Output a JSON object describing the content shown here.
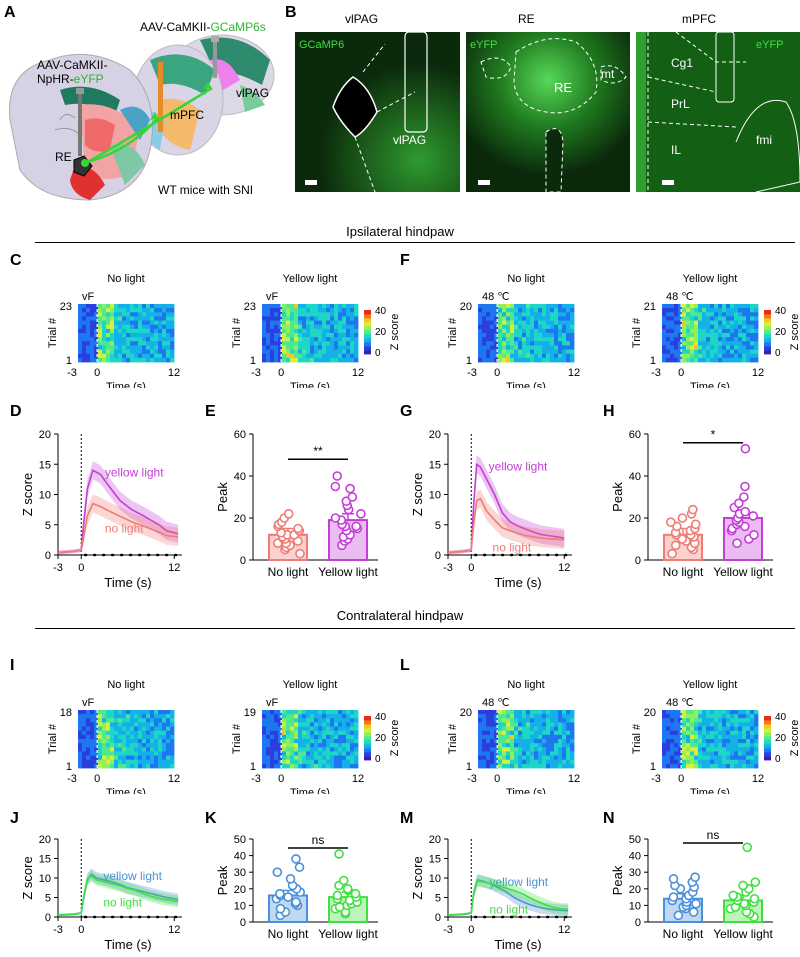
{
  "panel_letters": {
    "A": "A",
    "B": "B",
    "C": "C",
    "D": "D",
    "E": "E",
    "F": "F",
    "G": "G",
    "H": "H",
    "I": "I",
    "J": "J",
    "K": "K",
    "L": "L",
    "M": "M",
    "N": "N"
  },
  "panelA": {
    "virus_left_line1": "AAV-CaMKII-",
    "virus_left_line2": "NpHR-",
    "virus_left_fp": "eYFP",
    "virus_right": "AAV-CaMKII-",
    "virus_right_fp": "GCaMP6s",
    "region_re": "RE",
    "region_mpfc": "mPFC",
    "region_vlpag": "vlPAG",
    "caption": "WT mice with SNI"
  },
  "panelB": {
    "titles": [
      "vlPAG",
      "RE",
      "mPFC"
    ],
    "img1": {
      "marker": "GCaMP6",
      "region": "vlPAG"
    },
    "img2": {
      "marker": "eYFP",
      "region": "RE",
      "mt": "mt"
    },
    "img3": {
      "marker": "eYFP",
      "cg1": "Cg1",
      "prl": "PrL",
      "il": "IL",
      "fmi": "fmi"
    }
  },
  "sections": {
    "ipsi": "Ipsilateral hindpaw",
    "contra": "Contralateral hindpaw"
  },
  "heatmap_text": {
    "no_light": "No light",
    "yellow_light": "Yellow light",
    "trial": "Trial #",
    "time": "Time (s)",
    "zscore": "Z score",
    "vf": "vF",
    "heat": "48 ℃",
    "x_ticks": [
      "-3",
      "0",
      "12"
    ],
    "cbar_ticks": [
      "40",
      "20",
      "0"
    ],
    "C": {
      "trials_no": "23",
      "trials_yellow": "23"
    },
    "F": {
      "trials_no": "20",
      "trials_yellow": "21"
    },
    "I": {
      "trials_no": "18",
      "trials_yellow": "19"
    },
    "L": {
      "trials_no": "20",
      "trials_yellow": "20"
    },
    "trial_min": "1"
  },
  "chart_data": [
    {
      "panel": "D",
      "type": "line",
      "xlabel": "Time (s)",
      "ylabel": "Z score",
      "x_ticks": [
        "-3",
        "0",
        "12"
      ],
      "y_ticks": [
        "0",
        "5",
        "10",
        "15",
        "20"
      ],
      "xlim": [
        -3,
        13
      ],
      "ylim": [
        0,
        20
      ],
      "series": [
        {
          "name": "yellow light",
          "color": "#c33ed6",
          "x": [
            -3,
            -1,
            0,
            0.3,
            0.8,
            1.5,
            2.5,
            3.5,
            5,
            6.5,
            8,
            10,
            11,
            12.5
          ],
          "values": [
            0.4,
            0.6,
            0.8,
            5,
            11,
            14,
            13.3,
            11.5,
            9,
            7.5,
            6.5,
            5,
            4,
            3.5
          ]
        },
        {
          "name": "no light",
          "color": "#f07b74",
          "x": [
            -3,
            -1,
            0,
            0.3,
            0.8,
            1.5,
            2.5,
            3.5,
            5,
            6.5,
            8,
            10,
            11,
            12.5
          ],
          "values": [
            0.4,
            0.6,
            0.8,
            3,
            6.5,
            8.5,
            8,
            7.3,
            6.4,
            5.5,
            4.8,
            3.8,
            3.2,
            3
          ]
        }
      ]
    },
    {
      "panel": "E",
      "type": "bar",
      "ylabel": "Peak",
      "categories": [
        "No light",
        "Yellow light"
      ],
      "values": [
        12,
        19
      ],
      "colors": [
        "#f07b74",
        "#c33ed6"
      ],
      "y_ticks": [
        "0",
        "20",
        "40",
        "60"
      ],
      "ylim": [
        0,
        60
      ],
      "significance": "**",
      "points": [
        [
          3,
          5,
          6,
          7,
          8,
          8,
          9,
          10,
          10,
          11,
          12,
          12,
          13,
          14,
          15,
          16,
          17,
          18,
          20,
          22
        ],
        [
          7,
          9,
          10,
          11,
          12,
          14,
          15,
          16,
          16,
          17,
          19,
          20,
          22,
          24,
          26,
          28,
          30,
          34,
          35,
          40
        ]
      ]
    },
    {
      "panel": "G",
      "type": "line",
      "xlabel": "Time (s)",
      "ylabel": "Z score",
      "x_ticks": [
        "-3",
        "0",
        "12"
      ],
      "y_ticks": [
        "0",
        "5",
        "10",
        "15",
        "20"
      ],
      "xlim": [
        -3,
        13
      ],
      "ylim": [
        0,
        20
      ],
      "series": [
        {
          "name": "yellow light",
          "color": "#c33ed6",
          "x": [
            -3,
            -1,
            0,
            0.3,
            0.7,
            1.2,
            2,
            3,
            4,
            5,
            6,
            7,
            8,
            9,
            10,
            11,
            12
          ],
          "values": [
            0.4,
            0.6,
            0.8,
            8,
            15,
            14.5,
            12.5,
            10,
            7,
            5.5,
            4.8,
            4.3,
            3.8,
            3.4,
            3.2,
            3,
            2.8
          ]
        },
        {
          "name": "no light",
          "color": "#f07b74",
          "x": [
            -3,
            -1,
            0,
            0.3,
            0.7,
            1.2,
            2,
            3,
            4,
            5,
            6,
            7,
            8,
            9,
            10,
            11,
            12
          ],
          "values": [
            0.4,
            0.6,
            0.8,
            5,
            9,
            9.3,
            7.2,
            5.8,
            4.5,
            4,
            3.6,
            3.2,
            3,
            2.8,
            2.7,
            2.6,
            2.5
          ]
        }
      ]
    },
    {
      "panel": "H",
      "type": "bar",
      "ylabel": "Peak",
      "categories": [
        "No light",
        "Yellow light"
      ],
      "values": [
        12,
        20
      ],
      "colors": [
        "#f07b74",
        "#c33ed6"
      ],
      "y_ticks": [
        "0",
        "20",
        "40",
        "60"
      ],
      "ylim": [
        0,
        60
      ],
      "significance": "*",
      "points": [
        [
          3,
          5,
          6,
          7,
          8,
          9,
          10,
          11,
          12,
          12,
          13,
          14,
          15,
          16,
          17,
          18,
          20,
          22,
          24
        ],
        [
          8,
          10,
          12,
          14,
          15,
          16,
          17,
          18,
          19,
          20,
          21,
          22,
          23,
          25,
          27,
          30,
          35,
          53
        ]
      ]
    },
    {
      "panel": "J",
      "type": "line",
      "xlabel": "Time (s)",
      "ylabel": "Z score",
      "x_ticks": [
        "-3",
        "0",
        "12"
      ],
      "y_ticks": [
        "0",
        "5",
        "10",
        "15",
        "20"
      ],
      "xlim": [
        -3,
        13
      ],
      "ylim": [
        0,
        20
      ],
      "series": [
        {
          "name": "yellow light",
          "color": "#4a90d9",
          "x": [
            -3,
            -1,
            0,
            0.3,
            0.8,
            1.3,
            2,
            3,
            4,
            5,
            6,
            7,
            8,
            9,
            10,
            11,
            12.5
          ],
          "values": [
            0.5,
            0.7,
            1,
            5,
            9.5,
            11,
            10,
            9.5,
            9,
            8.3,
            7.5,
            7,
            6.5,
            6,
            5.5,
            5,
            4.5
          ]
        },
        {
          "name": "no light",
          "color": "#3fe03f",
          "x": [
            -3,
            -1,
            0,
            0.3,
            0.8,
            1.3,
            2,
            3,
            4,
            5,
            6,
            7,
            8,
            9,
            10,
            11,
            12.5
          ],
          "values": [
            0.5,
            0.7,
            1,
            5,
            9.8,
            10.5,
            9.5,
            9,
            8.5,
            8,
            7.3,
            6.8,
            6,
            5.3,
            4.8,
            4.4,
            4
          ]
        }
      ]
    },
    {
      "panel": "K",
      "type": "bar",
      "ylabel": "Peak",
      "categories": [
        "No light",
        "Yellow light"
      ],
      "values": [
        16,
        15
      ],
      "colors": [
        "#4a90d9",
        "#3fe03f"
      ],
      "y_ticks": [
        "0",
        "10",
        "20",
        "30",
        "40",
        "50"
      ],
      "ylim": [
        0,
        50
      ],
      "significance": "ns",
      "points": [
        [
          4,
          6,
          8,
          10,
          11,
          12,
          14,
          15,
          16,
          17,
          18,
          20,
          22,
          26,
          30,
          33,
          38
        ],
        [
          5,
          6,
          8,
          9,
          10,
          11,
          12,
          13,
          14,
          15,
          16,
          17,
          19,
          20,
          22,
          25,
          41
        ]
      ]
    },
    {
      "panel": "M",
      "type": "line",
      "xlabel": "Time (s)",
      "ylabel": "Z score",
      "x_ticks": [
        "-3",
        "0",
        "12"
      ],
      "y_ticks": [
        "0",
        "5",
        "10",
        "15",
        "20"
      ],
      "xlim": [
        -3,
        13
      ],
      "ylim": [
        0,
        20
      ],
      "series": [
        {
          "name": "yellow light",
          "color": "#4a90d9",
          "x": [
            -3,
            -1,
            0,
            0.3,
            0.8,
            1.5,
            2.5,
            3.5,
            4.5,
            5.5,
            6.5,
            7.5,
            8.5,
            9.5,
            10.5,
            11.5,
            12.5
          ],
          "values": [
            0.5,
            0.7,
            1,
            6,
            9.5,
            9.2,
            8.5,
            7.5,
            6.5,
            5,
            4,
            3.2,
            2.6,
            2.2,
            1.9,
            1.7,
            1.6
          ]
        },
        {
          "name": "no light",
          "color": "#3fe03f",
          "x": [
            -3,
            -1,
            0,
            0.3,
            0.8,
            1.5,
            2.5,
            3.5,
            4.5,
            5.5,
            6.5,
            7.5,
            8.5,
            9.5,
            10.5,
            11.5,
            12.5
          ],
          "values": [
            0.5,
            0.7,
            1,
            6,
            9.3,
            9,
            8.6,
            8,
            7.4,
            6.8,
            6,
            5,
            4,
            3.2,
            2.5,
            2.1,
            2
          ]
        }
      ]
    },
    {
      "panel": "N",
      "type": "bar",
      "ylabel": "Peak",
      "categories": [
        "No light",
        "Yellow light"
      ],
      "values": [
        14,
        13
      ],
      "colors": [
        "#4a90d9",
        "#3fe03f"
      ],
      "y_ticks": [
        "0",
        "10",
        "20",
        "30",
        "40",
        "50"
      ],
      "ylim": [
        0,
        50
      ],
      "significance": "ns",
      "points": [
        [
          4,
          6,
          8,
          9,
          10,
          11,
          12,
          13,
          14,
          15,
          16,
          18,
          20,
          21,
          22,
          24,
          26,
          27
        ],
        [
          3,
          5,
          6,
          8,
          9,
          10,
          11,
          12,
          13,
          14,
          15,
          16,
          18,
          20,
          22,
          24,
          45
        ]
      ]
    }
  ]
}
